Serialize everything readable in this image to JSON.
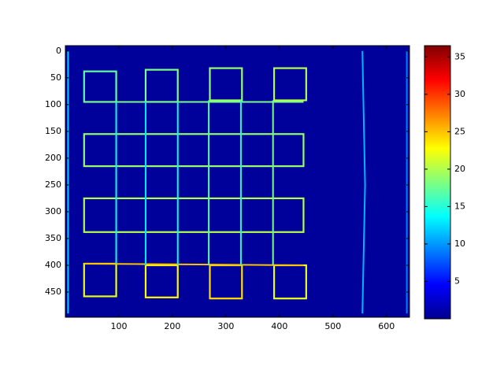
{
  "chart_data": {
    "type": "image",
    "xlim": [
      0,
      643
    ],
    "ylim": [
      -10,
      497
    ],
    "y_inverted": true,
    "xticks": [
      100,
      200,
      300,
      400,
      500,
      600
    ],
    "yticks": [
      0,
      50,
      100,
      150,
      200,
      250,
      300,
      350,
      400,
      450
    ],
    "background_value": 1,
    "clim": [
      0,
      36.5
    ],
    "cticks": [
      5,
      10,
      15,
      20,
      25,
      30,
      35
    ],
    "rects": [
      [
        35,
        38,
        95,
        95,
        17
      ],
      [
        150,
        35,
        210,
        95,
        18
      ],
      [
        270,
        32,
        330,
        92,
        19
      ],
      [
        390,
        32,
        450,
        92,
        20
      ],
      [
        35,
        155,
        445,
        215,
        19
      ],
      [
        35,
        275,
        445,
        338,
        20
      ],
      [
        35,
        397,
        95,
        458,
        22
      ],
      [
        150,
        400,
        210,
        460,
        23
      ],
      [
        270,
        400,
        330,
        462,
        24
      ],
      [
        390,
        400,
        450,
        462,
        22
      ]
    ],
    "lines": [
      {
        "x": [
          35,
          445
        ],
        "y": [
          95,
          95
        ],
        "value": 18
      },
      {
        "x": [
          35,
          445
        ],
        "y": [
          397,
          400
        ],
        "value": 25
      },
      {
        "x": [
          95,
          95
        ],
        "y": [
          95,
          397
        ],
        "value": 14
      },
      {
        "x": [
          150,
          150
        ],
        "y": [
          95,
          400
        ],
        "value": 13
      },
      {
        "x": [
          210,
          210
        ],
        "y": [
          95,
          400
        ],
        "value": 14
      },
      {
        "x": [
          268,
          268
        ],
        "y": [
          92,
          400
        ],
        "value": 17
      },
      {
        "x": [
          328,
          328
        ],
        "y": [
          92,
          400
        ],
        "value": 15
      },
      {
        "x": [
          388,
          388
        ],
        "y": [
          92,
          400
        ],
        "value": 18
      },
      {
        "x": [
          5,
          5
        ],
        "y": [
          0,
          490
        ],
        "value": 12
      },
      {
        "x": [
          555,
          560,
          555
        ],
        "y": [
          0,
          250,
          490
        ],
        "value": 11
      },
      {
        "x": [
          638,
          638
        ],
        "y": [
          0,
          490
        ],
        "value": 9
      }
    ]
  }
}
